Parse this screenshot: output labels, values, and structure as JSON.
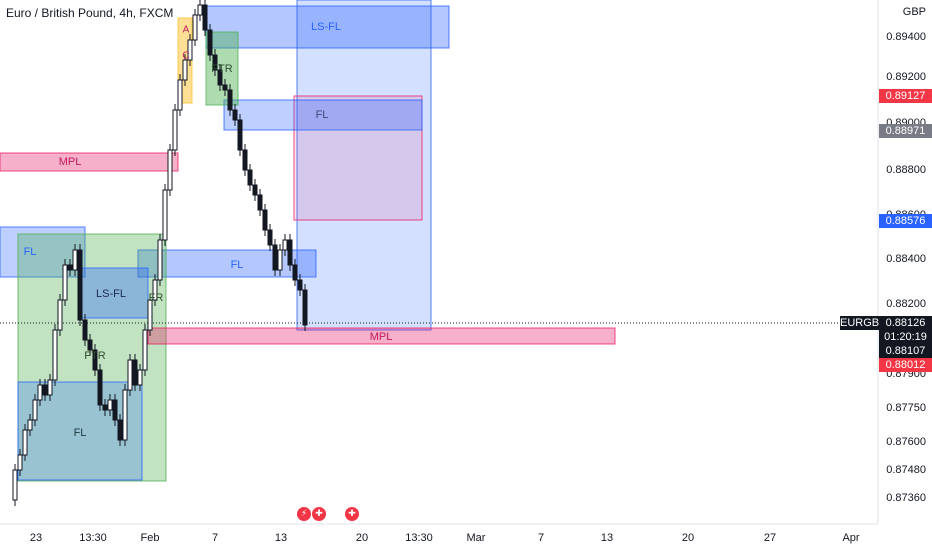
{
  "title": "Euro / British Pound, 4h, FXCM",
  "currency": "GBP",
  "price_axis": [
    "0.89400",
    "0.89200",
    "0.89000",
    "0.88800",
    "0.88600",
    "0.88400",
    "0.88200",
    "0.87900",
    "0.87750",
    "0.87600",
    "0.87480",
    "0.87360"
  ],
  "date_axis": [
    "23",
    "13:30",
    "Feb",
    "7",
    "13",
    "20",
    "13:30",
    "Mar",
    "7",
    "13",
    "20",
    "27",
    "Apr"
  ],
  "badges": {
    "red_top": "0.89127",
    "gray": "0.88971",
    "blue": "0.88576",
    "symbol": "EURGBP",
    "current": "0.88126",
    "countdown": "01:20:19",
    "dark": "0.88107",
    "red_bottom": "0.88012"
  },
  "zones": {
    "ls_fl_top": "LS-FL",
    "fl_mid_top": "FL",
    "mpl_left": "MPL",
    "fl_left": "FL",
    "fl_center": "FL",
    "ls_fl_left": "LS-FL",
    "fl_bottom_left": "FL",
    "mpl_bottom": "MPL",
    "ftr_top": "FTR",
    "ftr_left": "FTR",
    "ftr_mid": "FR",
    "aoi_letters": "A",
    "aoi_letters2": "C"
  },
  "colors": {
    "blue_zone": "#2962ff",
    "pink_zone": "#e91e63",
    "green_zone": "#4caf50",
    "yellow_zone": "#fbc02d",
    "red_badge": "#f23645",
    "blue_badge": "#2962ff",
    "gray_badge": "#787b86"
  },
  "events": [
    "flash-icon",
    "gb-flag-icon",
    "gb-flag-icon"
  ]
}
